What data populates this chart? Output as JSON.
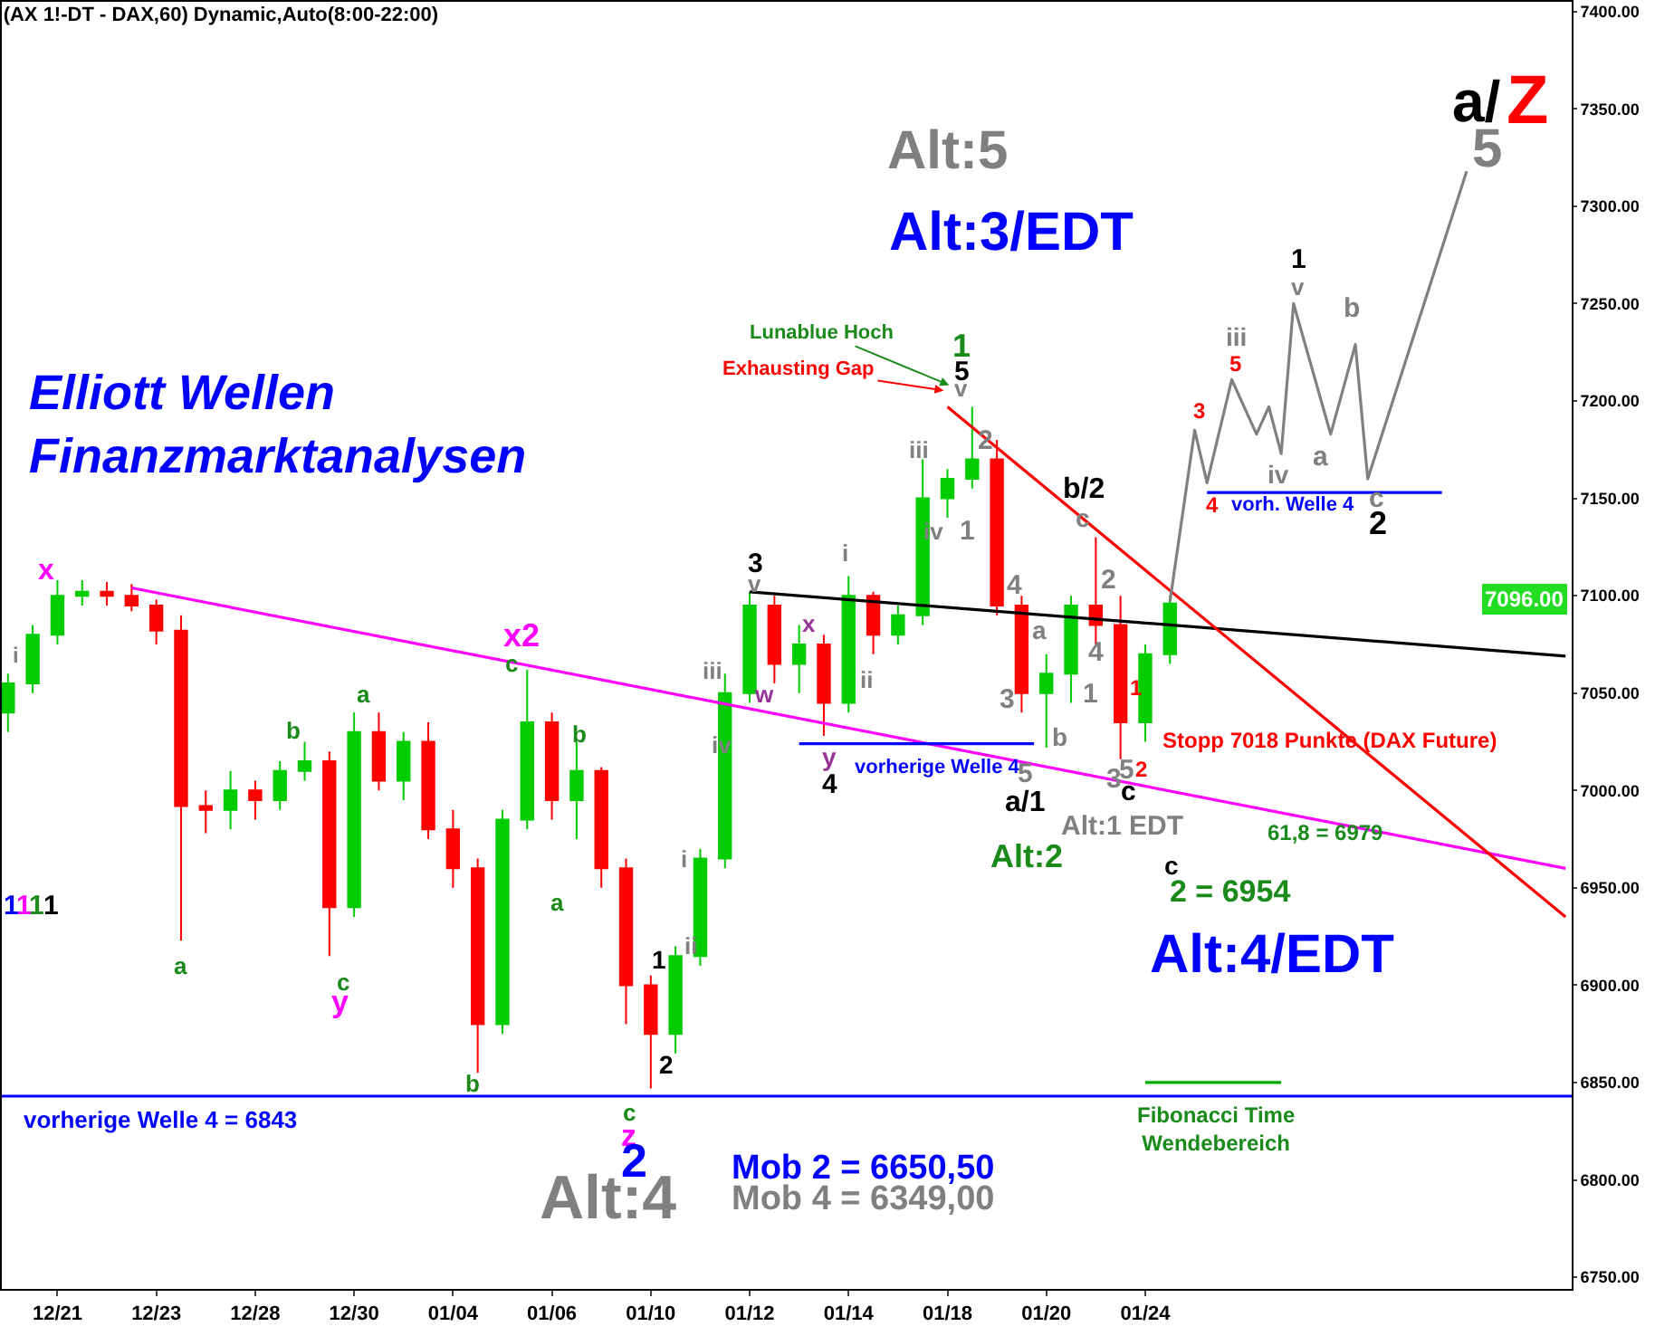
{
  "chart_data": {
    "type": "candlestick",
    "title": "(AX 1!-DT - DAX,60) Dynamic,Auto(8:00-22:00)",
    "subtitle": "Elliott Wellen\nFinanzmarktanalysen",
    "categories": [
      null,
      null,
      null,
      null,
      "12/21",
      null,
      null,
      null,
      null,
      null,
      null,
      null,
      "12/23",
      null,
      null,
      null,
      null,
      null,
      null,
      null,
      "12/28",
      null,
      null,
      null,
      null,
      null,
      null,
      null,
      "12/30",
      null,
      null,
      null,
      null,
      null,
      null,
      null,
      "01/04",
      null,
      null,
      null,
      null,
      null,
      null,
      null,
      "01/06",
      null,
      null,
      null,
      null,
      null,
      null,
      null,
      "01/10",
      null,
      null,
      null,
      null,
      null,
      null,
      null,
      "01/12",
      null,
      null,
      null,
      null,
      null,
      null,
      null,
      "01/14",
      null,
      null,
      null,
      null,
      null,
      null,
      null,
      "01/18",
      null,
      null,
      null,
      null,
      null,
      null,
      null,
      "01/20",
      null,
      null,
      null,
      null,
      null,
      null,
      null,
      "01/24",
      null,
      null,
      null,
      null,
      null,
      null,
      null,
      null,
      null,
      null,
      null,
      null,
      null,
      null,
      null,
      null,
      null,
      null,
      null,
      null,
      null,
      null,
      null,
      null,
      null,
      null,
      null,
      null,
      null,
      null,
      null,
      null,
      null,
      null
    ],
    "ohlc": [
      [
        7040,
        7060,
        7030,
        7055
      ],
      null,
      [
        7055,
        7085,
        7050,
        7080
      ],
      null,
      [
        7080,
        7108,
        7075,
        7100
      ],
      null,
      [
        7100,
        7108,
        7095,
        7102
      ],
      null,
      [
        7102,
        7107,
        7095,
        7100
      ],
      null,
      [
        7100,
        7106,
        7092,
        7095
      ],
      null,
      [
        7095,
        7098,
        7075,
        7082
      ],
      null,
      [
        7082,
        7090,
        6923,
        6992
      ],
      null,
      [
        6992,
        7000,
        6978,
        6990
      ],
      null,
      [
        6990,
        7010,
        6980,
        7000
      ],
      null,
      [
        7000,
        7005,
        6985,
        6995
      ],
      null,
      [
        6995,
        7015,
        6990,
        7010
      ],
      null,
      [
        7010,
        7025,
        7005,
        7015
      ],
      null,
      [
        7015,
        7020,
        6915,
        6940
      ],
      null,
      [
        6940,
        7040,
        6935,
        7030
      ],
      null,
      [
        7030,
        7040,
        7000,
        7005
      ],
      null,
      [
        7005,
        7030,
        6995,
        7025
      ],
      null,
      [
        7025,
        7035,
        6975,
        6980
      ],
      null,
      [
        6980,
        6990,
        6950,
        6960
      ],
      null,
      [
        6960,
        6965,
        6855,
        6880
      ],
      null,
      [
        6880,
        6990,
        6875,
        6985
      ],
      null,
      [
        6985,
        7062,
        6980,
        7035
      ],
      null,
      [
        7035,
        7040,
        6985,
        6995
      ],
      null,
      [
        6995,
        7025,
        6975,
        7010
      ],
      null,
      [
        7010,
        7012,
        6950,
        6960
      ],
      null,
      [
        6960,
        6965,
        6880,
        6900
      ],
      null,
      [
        6900,
        6905,
        6847,
        6875
      ],
      null,
      [
        6875,
        6920,
        6865,
        6915
      ],
      null,
      [
        6915,
        6970,
        6910,
        6965
      ],
      null,
      [
        6965,
        7060,
        6960,
        7050
      ],
      null,
      [
        7050,
        7102,
        7045,
        7095
      ],
      null,
      [
        7095,
        7100,
        7055,
        7065
      ],
      null,
      [
        7065,
        7085,
        7050,
        7075
      ],
      null,
      [
        7075,
        7080,
        7028,
        7045
      ],
      null,
      [
        7045,
        7110,
        7040,
        7100
      ],
      null,
      [
        7100,
        7102,
        7070,
        7080
      ],
      null,
      [
        7080,
        7095,
        7075,
        7090
      ],
      null,
      [
        7090,
        7170,
        7085,
        7150
      ],
      null,
      [
        7150,
        7165,
        7140,
        7160
      ],
      null,
      [
        7160,
        7197,
        7155,
        7170
      ],
      null,
      [
        7170,
        7180,
        7090,
        7095
      ],
      null,
      [
        7095,
        7100,
        7040,
        7050
      ],
      null,
      [
        7050,
        7070,
        7022,
        7060
      ],
      null,
      [
        7060,
        7100,
        7045,
        7095
      ],
      null,
      [
        7095,
        7130,
        7075,
        7085
      ],
      null,
      [
        7085,
        7100,
        7016,
        7035
      ],
      null,
      [
        7035,
        7075,
        7025,
        7070
      ],
      null,
      [
        7070,
        7100,
        7065,
        7096
      ],
      null,
      null,
      null,
      null,
      null,
      null,
      null,
      null,
      null,
      null,
      null,
      null,
      null,
      null,
      null,
      null,
      null,
      null,
      null,
      null,
      null,
      null,
      null,
      null,
      null,
      null,
      null,
      null,
      null,
      null,
      null,
      null
    ],
    "colors": [
      "#00cc00",
      null,
      "#00cc00",
      null,
      "#00cc00",
      null,
      "#00cc00",
      null,
      "#ff0000",
      null,
      "#ff0000",
      null,
      "#ff0000",
      null,
      "#ff0000",
      null,
      "#ff0000",
      null,
      "#00cc00",
      null,
      "#ff0000",
      null,
      "#00cc00",
      null,
      "#00cc00",
      null,
      "#ff0000",
      null,
      "#00cc00",
      null,
      "#ff0000",
      null,
      "#00cc00",
      null,
      "#ff0000",
      null,
      "#ff0000",
      null,
      "#ff0000",
      null,
      "#00cc00",
      null,
      "#00cc00",
      null,
      "#ff0000",
      null,
      "#00cc00",
      null,
      "#ff0000",
      null,
      "#ff0000",
      null,
      "#ff0000",
      null,
      "#00cc00",
      null,
      "#00cc00",
      null,
      "#00cc00",
      null,
      "#00cc00",
      null,
      "#ff0000",
      null,
      "#00cc00",
      null,
      "#ff0000",
      null,
      "#00cc00",
      null,
      "#ff0000",
      null,
      "#00cc00",
      null,
      "#00cc00",
      null,
      "#00cc00",
      null,
      "#00cc00",
      null,
      "#ff0000",
      null,
      "#ff0000",
      null,
      "#00cc00",
      null,
      "#00cc00",
      null,
      "#ff0000",
      null,
      "#ff0000",
      null,
      "#00cc00",
      null,
      "#00cc00",
      null,
      null,
      null,
      null,
      null,
      null,
      null,
      null,
      null,
      null,
      null,
      null,
      null,
      null,
      null,
      null,
      null,
      null,
      null,
      null,
      null,
      null,
      null,
      null,
      null,
      null,
      null,
      null,
      null,
      null,
      null,
      null
    ],
    "series": [
      {
        "type": "line",
        "color": "#ff00ff",
        "values": [
          null,
          null,
          null,
          null,
          null,
          null,
          null,
          null,
          null,
          null,
          7104,
          null,
          null,
          null,
          null,
          null,
          null,
          null,
          null,
          null,
          null,
          null,
          null,
          null,
          null,
          null,
          null,
          null,
          null,
          null,
          null,
          null,
          null,
          null,
          null,
          null,
          null,
          null,
          null,
          null,
          null,
          null,
          null,
          null,
          null,
          null,
          null,
          null,
          null,
          null,
          null,
          null,
          null,
          null,
          null,
          null,
          null,
          null,
          null,
          null,
          null,
          null,
          null,
          null,
          null,
          null,
          null,
          null,
          null,
          null,
          null,
          null,
          null,
          null,
          null,
          null,
          null,
          null,
          null,
          null,
          null,
          null,
          null,
          null,
          null,
          null,
          null,
          null,
          null,
          null,
          null,
          null,
          null,
          null,
          null,
          null,
          null,
          null,
          null,
          null,
          null,
          null,
          null,
          null,
          null,
          null,
          null,
          null,
          null,
          null,
          null,
          null,
          null,
          null,
          null,
          null,
          null,
          null,
          null,
          null,
          null,
          null,
          null,
          null,
          null,
          null,
          6960
        ]
      },
      {
        "type": "line",
        "color": "#000000",
        "values": [
          null,
          null,
          null,
          null,
          null,
          null,
          null,
          null,
          null,
          null,
          null,
          null,
          null,
          null,
          null,
          null,
          null,
          null,
          null,
          null,
          null,
          null,
          null,
          null,
          null,
          null,
          null,
          null,
          null,
          null,
          null,
          null,
          null,
          null,
          null,
          null,
          null,
          null,
          null,
          null,
          null,
          null,
          null,
          null,
          null,
          null,
          null,
          null,
          null,
          null,
          null,
          null,
          null,
          null,
          null,
          null,
          null,
          null,
          null,
          null,
          7102,
          null,
          null,
          null,
          null,
          null,
          null,
          null,
          null,
          null,
          null,
          null,
          null,
          null,
          null,
          null,
          null,
          null,
          null,
          null,
          null,
          null,
          null,
          null,
          null,
          null,
          null,
          null,
          null,
          null,
          null,
          null,
          null,
          null,
          null,
          null,
          null,
          null,
          null,
          null,
          null,
          null,
          null,
          null,
          null,
          null,
          null,
          null,
          null,
          null,
          null,
          null,
          null,
          null,
          null,
          null,
          null,
          null,
          null,
          null,
          null,
          null,
          null,
          null,
          null,
          null,
          7069
        ]
      },
      {
        "type": "line",
        "color": "#ff0000",
        "values": [
          null,
          null,
          null,
          null,
          null,
          null,
          null,
          null,
          null,
          null,
          null,
          null,
          null,
          null,
          null,
          null,
          null,
          null,
          null,
          null,
          null,
          null,
          null,
          null,
          null,
          null,
          null,
          null,
          null,
          null,
          null,
          null,
          null,
          null,
          null,
          null,
          null,
          null,
          null,
          null,
          null,
          null,
          null,
          null,
          null,
          null,
          null,
          null,
          null,
          null,
          null,
          null,
          null,
          null,
          null,
          null,
          null,
          null,
          null,
          null,
          null,
          null,
          null,
          null,
          null,
          null,
          null,
          null,
          null,
          null,
          null,
          null,
          null,
          null,
          null,
          null,
          7197,
          null,
          null,
          null,
          null,
          null,
          null,
          null,
          null,
          null,
          null,
          null,
          null,
          null,
          null,
          null,
          null,
          null,
          null,
          null,
          null,
          null,
          null,
          null,
          null,
          null,
          null,
          null,
          null,
          null,
          null,
          null,
          null,
          null,
          null,
          null,
          null,
          null,
          null,
          null,
          null,
          null,
          null,
          null,
          null,
          null,
          null,
          null,
          null,
          null,
          6935
        ]
      },
      {
        "type": "line",
        "color": "#0000ff",
        "values": [
          null,
          null,
          null,
          null,
          null,
          null,
          null,
          null,
          null,
          null,
          null,
          null,
          null,
          null,
          null,
          null,
          null,
          null,
          null,
          null,
          null,
          null,
          null,
          null,
          null,
          null,
          null,
          null,
          null,
          null,
          null,
          null,
          null,
          null,
          null,
          null,
          null,
          null,
          null,
          null,
          null,
          null,
          null,
          null,
          null,
          null,
          null,
          null,
          null,
          null,
          null,
          null,
          null,
          null,
          null,
          null,
          null,
          null,
          null,
          null,
          null,
          null,
          null,
          null,
          7024,
          null,
          null,
          null,
          null,
          null,
          null,
          null,
          null,
          null,
          null,
          null,
          null,
          null,
          null,
          null,
          null,
          null,
          null,
          7024,
          null,
          null,
          null,
          null,
          null,
          null,
          null,
          null,
          null,
          null,
          null,
          null,
          null,
          null,
          null,
          null,
          null,
          null,
          null,
          null,
          null,
          null,
          null,
          null,
          null,
          null,
          null,
          null,
          null,
          null,
          null,
          null,
          null,
          null,
          null,
          null,
          null,
          null,
          null,
          null,
          null,
          null,
          null
        ]
      },
      {
        "type": "line",
        "color": "#0000ff",
        "values": [
          null,
          null,
          null,
          null,
          null,
          null,
          null,
          null,
          null,
          null,
          null,
          null,
          null,
          null,
          null,
          null,
          null,
          null,
          null,
          null,
          null,
          null,
          null,
          null,
          null,
          null,
          null,
          null,
          null,
          null,
          null,
          null,
          null,
          null,
          null,
          null,
          null,
          null,
          null,
          null,
          null,
          null,
          null,
          null,
          null,
          null,
          null,
          null,
          null,
          null,
          null,
          null,
          null,
          null,
          null,
          null,
          null,
          null,
          null,
          null,
          null,
          null,
          null,
          null,
          null,
          null,
          null,
          null,
          null,
          null,
          null,
          null,
          null,
          null,
          null,
          null,
          null,
          null,
          null,
          null,
          null,
          null,
          null,
          null,
          null,
          null,
          null,
          null,
          null,
          null,
          null,
          null,
          null,
          null,
          null,
          null,
          null,
          7153,
          null,
          null,
          null,
          null,
          null,
          null,
          null,
          null,
          null,
          null,
          null,
          null,
          null,
          null,
          null,
          null,
          null,
          null,
          7153,
          null,
          null,
          null,
          null,
          null,
          null,
          null,
          null,
          null,
          null
        ]
      },
      {
        "type": "line",
        "color": "#00aa00",
        "values": [
          null,
          null,
          null,
          null,
          null,
          null,
          null,
          null,
          null,
          null,
          null,
          null,
          null,
          null,
          null,
          null,
          null,
          null,
          null,
          null,
          null,
          null,
          null,
          null,
          null,
          null,
          null,
          null,
          null,
          null,
          null,
          null,
          null,
          null,
          null,
          null,
          null,
          null,
          null,
          null,
          null,
          null,
          null,
          null,
          null,
          null,
          null,
          null,
          null,
          null,
          null,
          null,
          null,
          null,
          null,
          null,
          null,
          null,
          null,
          null,
          null,
          null,
          null,
          null,
          null,
          null,
          null,
          null,
          null,
          null,
          null,
          null,
          null,
          null,
          null,
          null,
          null,
          null,
          null,
          null,
          null,
          null,
          null,
          null,
          null,
          null,
          null,
          null,
          null,
          null,
          null,
          null,
          6850,
          null,
          null,
          null,
          null,
          null,
          null,
          null,
          null,
          null,
          null,
          6850,
          null,
          null,
          null,
          null,
          null,
          null,
          null,
          null,
          null,
          null,
          null,
          null,
          null,
          null,
          null,
          null,
          null,
          null,
          null,
          null,
          null,
          null,
          null
        ]
      },
      {
        "type": "line",
        "color": "#808080",
        "values": [
          null,
          null,
          null,
          null,
          null,
          null,
          null,
          null,
          null,
          null,
          null,
          null,
          null,
          null,
          null,
          null,
          null,
          null,
          null,
          null,
          null,
          null,
          null,
          null,
          null,
          null,
          null,
          null,
          null,
          null,
          null,
          null,
          null,
          null,
          null,
          null,
          null,
          null,
          null,
          null,
          null,
          null,
          null,
          null,
          null,
          null,
          null,
          null,
          null,
          null,
          null,
          null,
          null,
          null,
          null,
          null,
          null,
          null,
          null,
          null,
          null,
          null,
          null,
          null,
          null,
          null,
          null,
          null,
          null,
          null,
          null,
          null,
          null,
          null,
          null,
          null,
          null,
          null,
          null,
          null,
          null,
          null,
          null,
          null,
          null,
          null,
          null,
          null,
          null,
          null,
          null,
          null,
          null,
          null,
          7097,
          null,
          7185,
          7158,
          null,
          7211,
          null,
          7183,
          7197,
          7173,
          7250,
          null,
          null,
          7183,
          null,
          7229,
          7160,
          null,
          null,
          null,
          null,
          null,
          null,
          null,
          7318,
          null,
          null,
          null,
          null,
          null,
          null,
          null,
          null
        ]
      }
    ],
    "ylim": [
      6744,
      7405
    ],
    "yticks": [
      {
        "value": 6750,
        "label": "6750.00"
      },
      {
        "value": 6800,
        "label": "6800.00"
      },
      {
        "value": 6850,
        "label": "6850.00"
      },
      {
        "value": 6900,
        "label": "6900.00"
      },
      {
        "value": 6950,
        "label": "6950.00"
      },
      {
        "value": 7000,
        "label": "7000.00"
      },
      {
        "value": 7050,
        "label": "7050.00"
      },
      {
        "value": 7100,
        "label": "7100.00"
      },
      {
        "value": 7150,
        "label": "7150.00"
      },
      {
        "value": 7200,
        "label": "7200.00"
      },
      {
        "value": 7250,
        "label": "7250.00"
      },
      {
        "value": 7300,
        "label": "7300.00"
      },
      {
        "value": 7350,
        "label": "7350.00"
      },
      {
        "value": 7400,
        "label": "7400.00"
      }
    ],
    "ref_lines": [
      {
        "axis": "y",
        "value": 6843,
        "label": "vorherige Welle 4 = 6843",
        "color": "#0000ff"
      }
    ],
    "grid": false,
    "legend": false,
    "annotations": [
      "x",
      "i",
      "1",
      "1",
      "1",
      "1",
      "a",
      "b",
      "c",
      "y",
      "a",
      "b",
      "a",
      "b",
      "c",
      "x2",
      "c",
      "z",
      "2",
      "Alt:4",
      "Mob 2 = 6650,50",
      "Mob 4 = 6349,00",
      "1",
      "2",
      "i",
      "ii",
      "iii",
      "iv",
      "v",
      "3",
      "w",
      "x",
      "y",
      "4",
      "vorherige Welle 4",
      "i",
      "ii",
      "iii",
      "iv",
      "1",
      "2",
      "v",
      "5",
      "1",
      "Lunablue Hoch",
      "Exhausting Gap",
      "4",
      "a",
      "3",
      "5",
      "a/1",
      "b",
      "1",
      "c",
      "b/2",
      "2",
      "4",
      "1",
      "3",
      "5",
      "2",
      "c",
      "Alt:1 EDT",
      "Alt:2",
      "61,8 = 6979",
      "c",
      "2 = 6954",
      "Alt:4/EDT",
      "Stopp 7018 Punkte (DAX Future)",
      "Fibonacci Time\nWendebereich",
      "3",
      "5",
      "iii",
      "4",
      "vorh. Welle 4",
      "iv",
      "v",
      "1",
      "a",
      "b",
      "c",
      "2",
      "a/",
      "Z",
      "5",
      "Alt:5",
      "Alt:3/EDT",
      "7096.00"
    ]
  }
}
